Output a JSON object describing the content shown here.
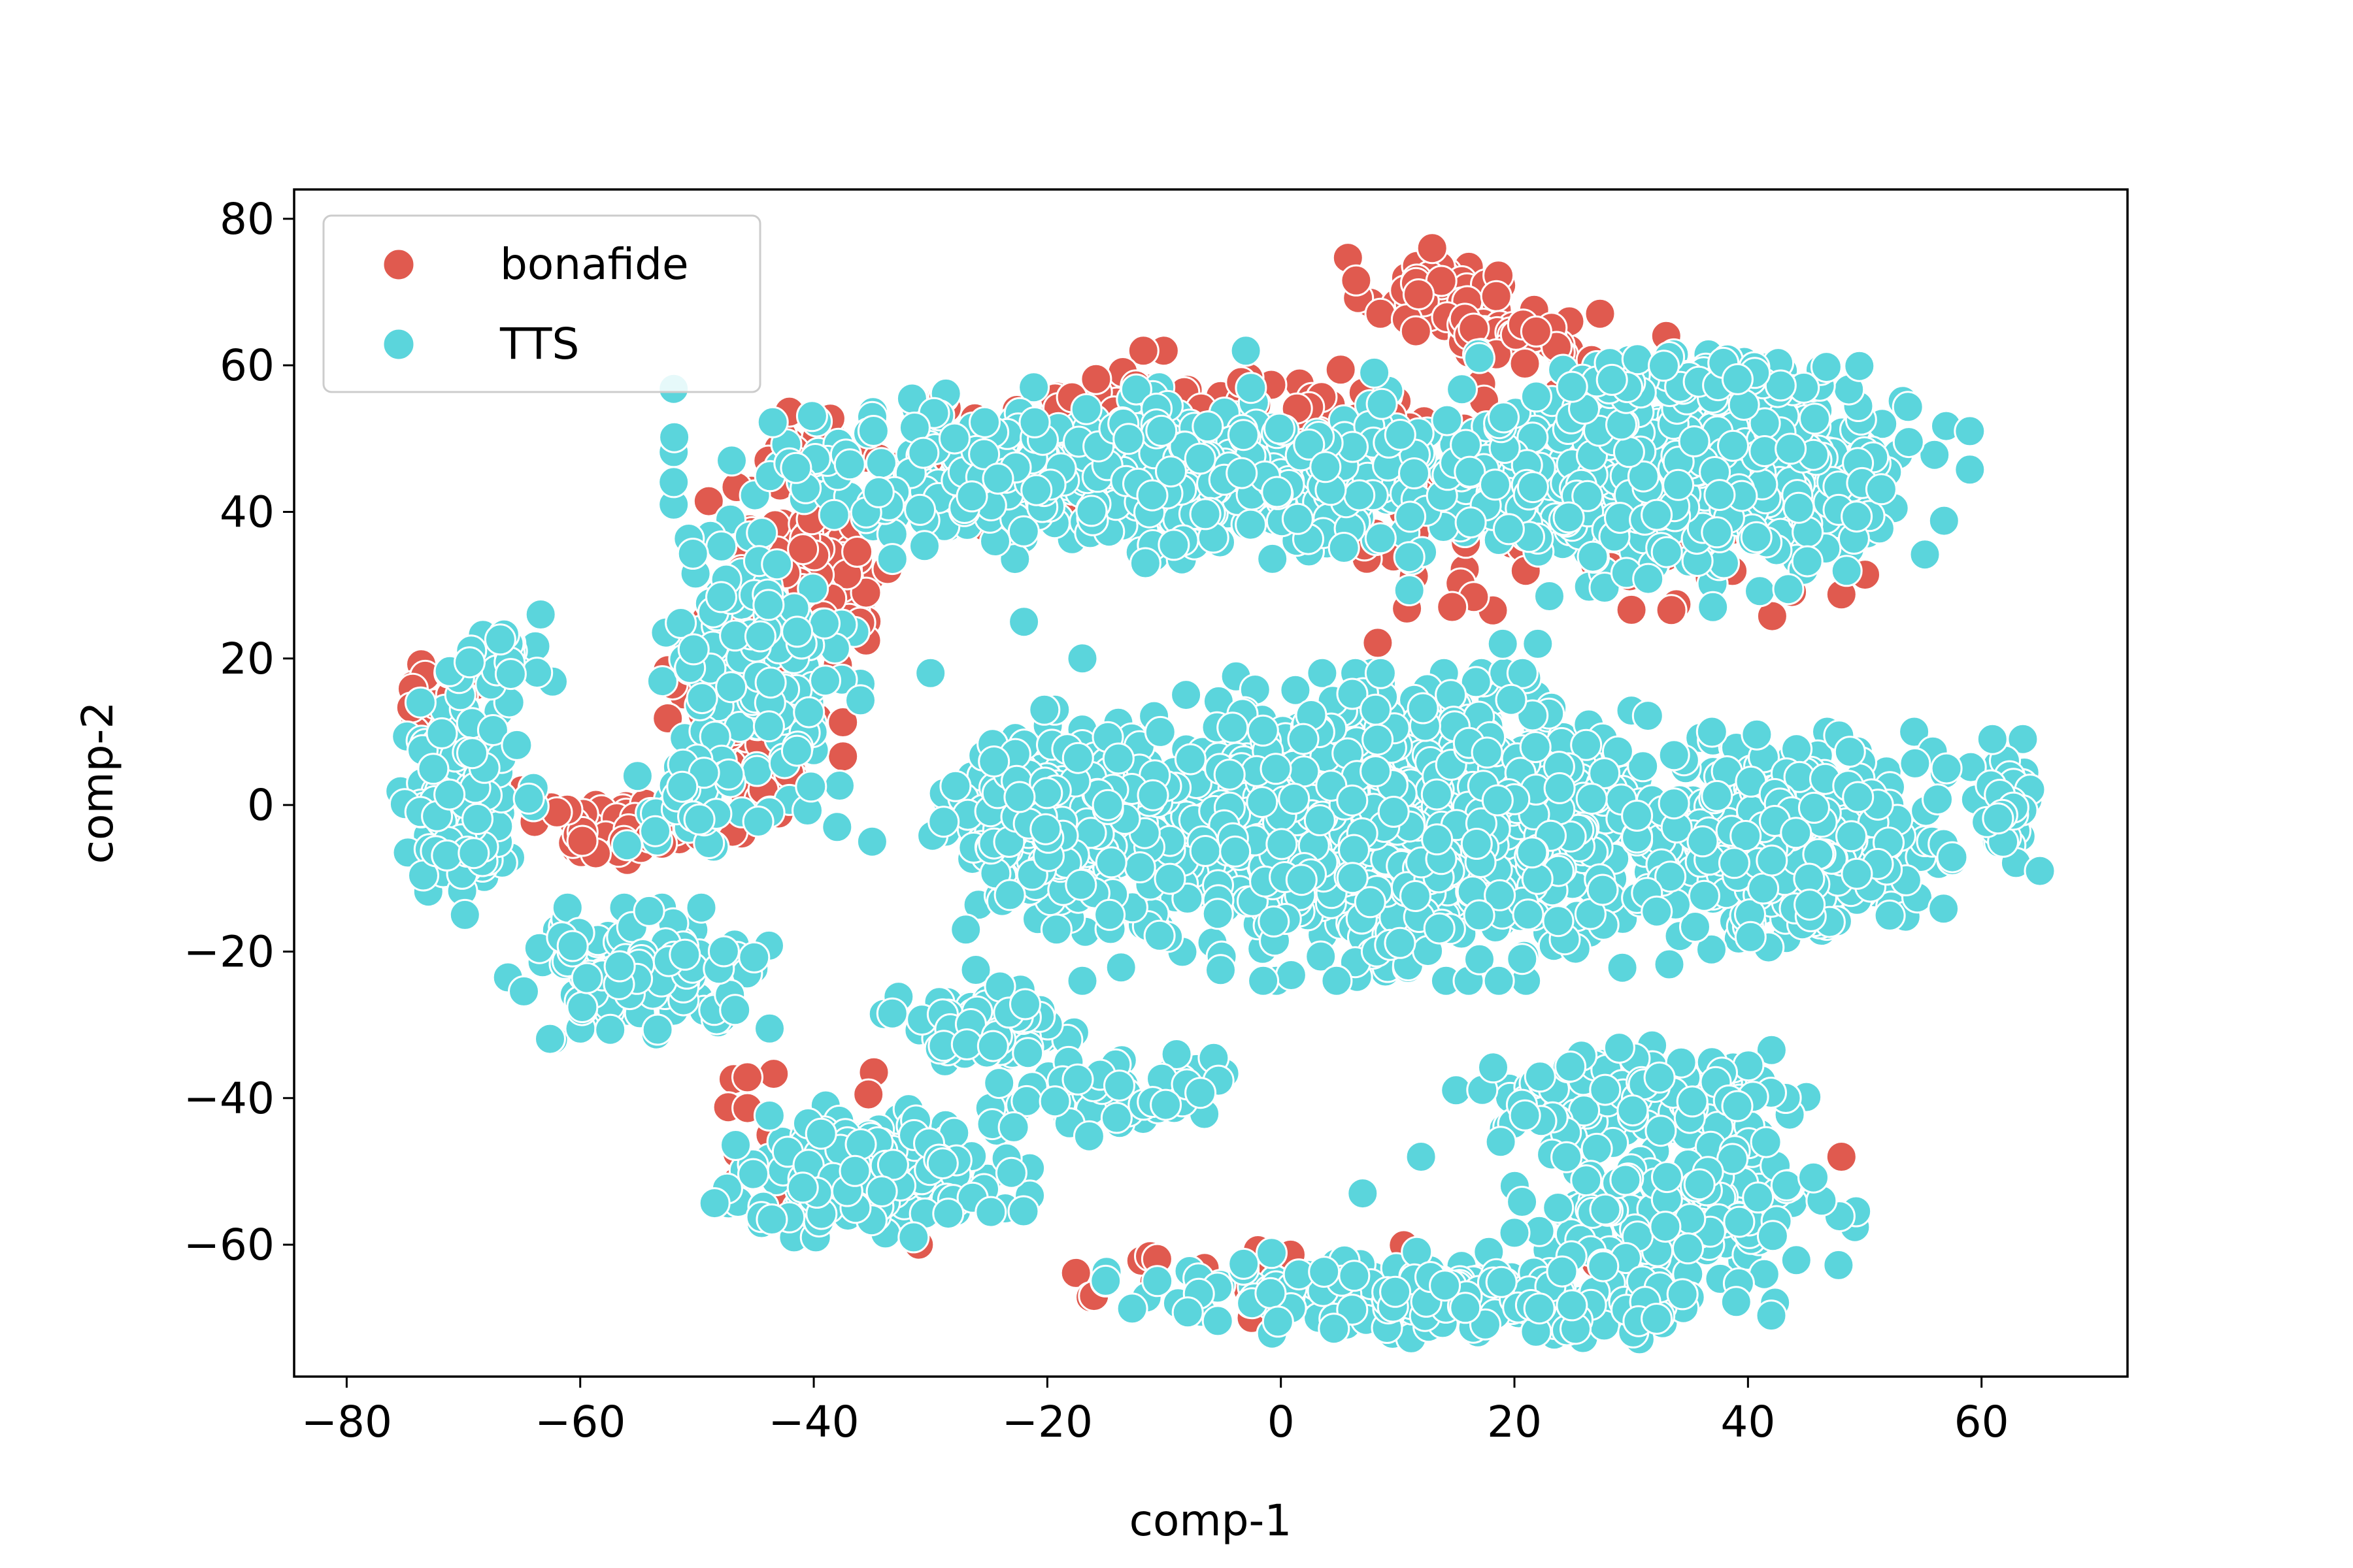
{
  "chart_data": {
    "type": "scatter",
    "title": "",
    "xlabel": "comp-1",
    "ylabel": "comp-2",
    "xlim": [
      -84.5,
      72.5
    ],
    "ylim": [
      -78,
      84
    ],
    "x_ticks": [
      -80,
      -60,
      -40,
      -20,
      0,
      20,
      40,
      60
    ],
    "y_ticks": [
      80,
      60,
      40,
      20,
      0,
      -20,
      -40,
      -60
    ],
    "x_tick_labels": [
      "−80",
      "−60",
      "−40",
      "−20",
      "0",
      "20",
      "40",
      "60"
    ],
    "y_tick_labels": [
      "80",
      "60",
      "40",
      "20",
      "0",
      "−20",
      "−40",
      "−60"
    ],
    "grid": false,
    "legend_position": "upper-left",
    "marker_edge_color": "#ffffff",
    "series": [
      {
        "name": "bonafide",
        "color": "#e05a4f",
        "clusters": [
          {
            "center": [
              13,
              70
            ],
            "spread": [
              5,
              4
            ],
            "count": 60
          },
          {
            "center": [
              20,
              64
            ],
            "spread": [
              6,
              3
            ],
            "count": 50
          },
          {
            "center": [
              -10,
              50
            ],
            "spread": [
              22,
              8
            ],
            "count": 220
          },
          {
            "center": [
              -40,
              32
            ],
            "spread": [
              6,
              10
            ],
            "count": 120
          },
          {
            "center": [
              -45,
              12
            ],
            "spread": [
              5,
              10
            ],
            "count": 90
          },
          {
            "center": [
              -55,
              -3
            ],
            "spread": [
              8,
              3
            ],
            "count": 70
          },
          {
            "center": [
              25,
              40
            ],
            "spread": [
              18,
              12
            ],
            "count": 110
          },
          {
            "center": [
              -72,
              15
            ],
            "spread": [
              2,
              8
            ],
            "count": 20
          },
          {
            "center": [
              -40,
              -45
            ],
            "spread": [
              10,
              8
            ],
            "count": 25
          },
          {
            "center": [
              0,
              -65
            ],
            "spread": [
              20,
              4
            ],
            "count": 25
          }
        ],
        "points": [
          [
            48,
            -48
          ],
          [
            -2.5,
            -70
          ],
          [
            -16,
            -67
          ],
          [
            -31,
            -60
          ],
          [
            -37,
            -55
          ],
          [
            33,
            64
          ],
          [
            -65,
            2
          ],
          [
            -62,
            -1
          ]
        ]
      },
      {
        "name": "TTS",
        "color": "#5bd5dc",
        "clusters": [
          {
            "center": [
              10,
              -3
            ],
            "spread": [
              18,
              14
            ],
            "count": 1400
          },
          {
            "center": [
              44,
              -5
            ],
            "spread": [
              9,
              10
            ],
            "count": 420
          },
          {
            "center": [
              -20,
              -2
            ],
            "spread": [
              7,
              10
            ],
            "count": 260
          },
          {
            "center": [
              -25,
              -30
            ],
            "spread": [
              6,
              5
            ],
            "count": 70
          },
          {
            "center": [
              -15,
              -40
            ],
            "spread": [
              8,
              4
            ],
            "count": 60
          },
          {
            "center": [
              30,
              -40
            ],
            "spread": [
              10,
              5
            ],
            "count": 180
          },
          {
            "center": [
              35,
              -55
            ],
            "spread": [
              10,
              6
            ],
            "count": 200
          },
          {
            "center": [
              15,
              -67
            ],
            "spread": [
              20,
              4
            ],
            "count": 240
          },
          {
            "center": [
              -35,
              -50
            ],
            "spread": [
              9,
              6
            ],
            "count": 240
          },
          {
            "center": [
              -55,
              -23
            ],
            "spread": [
              8,
              6
            ],
            "count": 150
          },
          {
            "center": [
              -70,
              0
            ],
            "spread": [
              4,
              10
            ],
            "count": 130
          },
          {
            "center": [
              -67,
              20
            ],
            "spread": [
              4,
              4
            ],
            "count": 30
          },
          {
            "center": [
              -10,
              45
            ],
            "spread": [
              28,
              8
            ],
            "count": 550
          },
          {
            "center": [
              35,
              45
            ],
            "spread": [
              16,
              11
            ],
            "count": 450
          },
          {
            "center": [
              -45,
              20
            ],
            "spread": [
              6,
              14
            ],
            "count": 140
          },
          {
            "center": [
              -50,
              0
            ],
            "spread": [
              5,
              5
            ],
            "count": 40
          },
          {
            "center": [
              62,
              0
            ],
            "spread": [
              2,
              6
            ],
            "count": 40
          },
          {
            "center": [
              35,
              58
            ],
            "spread": [
              10,
              3
            ],
            "count": 60
          }
        ],
        "points": [
          [
            -22,
            25
          ],
          [
            -17,
            20
          ],
          [
            -30,
            18
          ],
          [
            -35,
            -5
          ],
          [
            -38,
            -3
          ],
          [
            7,
            -53
          ],
          [
            12,
            -48
          ],
          [
            19,
            22
          ],
          [
            22,
            22
          ],
          [
            -3,
            62
          ],
          [
            17,
            61
          ],
          [
            8,
            59
          ],
          [
            37,
            27
          ],
          [
            57,
            5
          ],
          [
            65,
            -9
          ]
        ]
      }
    ]
  }
}
